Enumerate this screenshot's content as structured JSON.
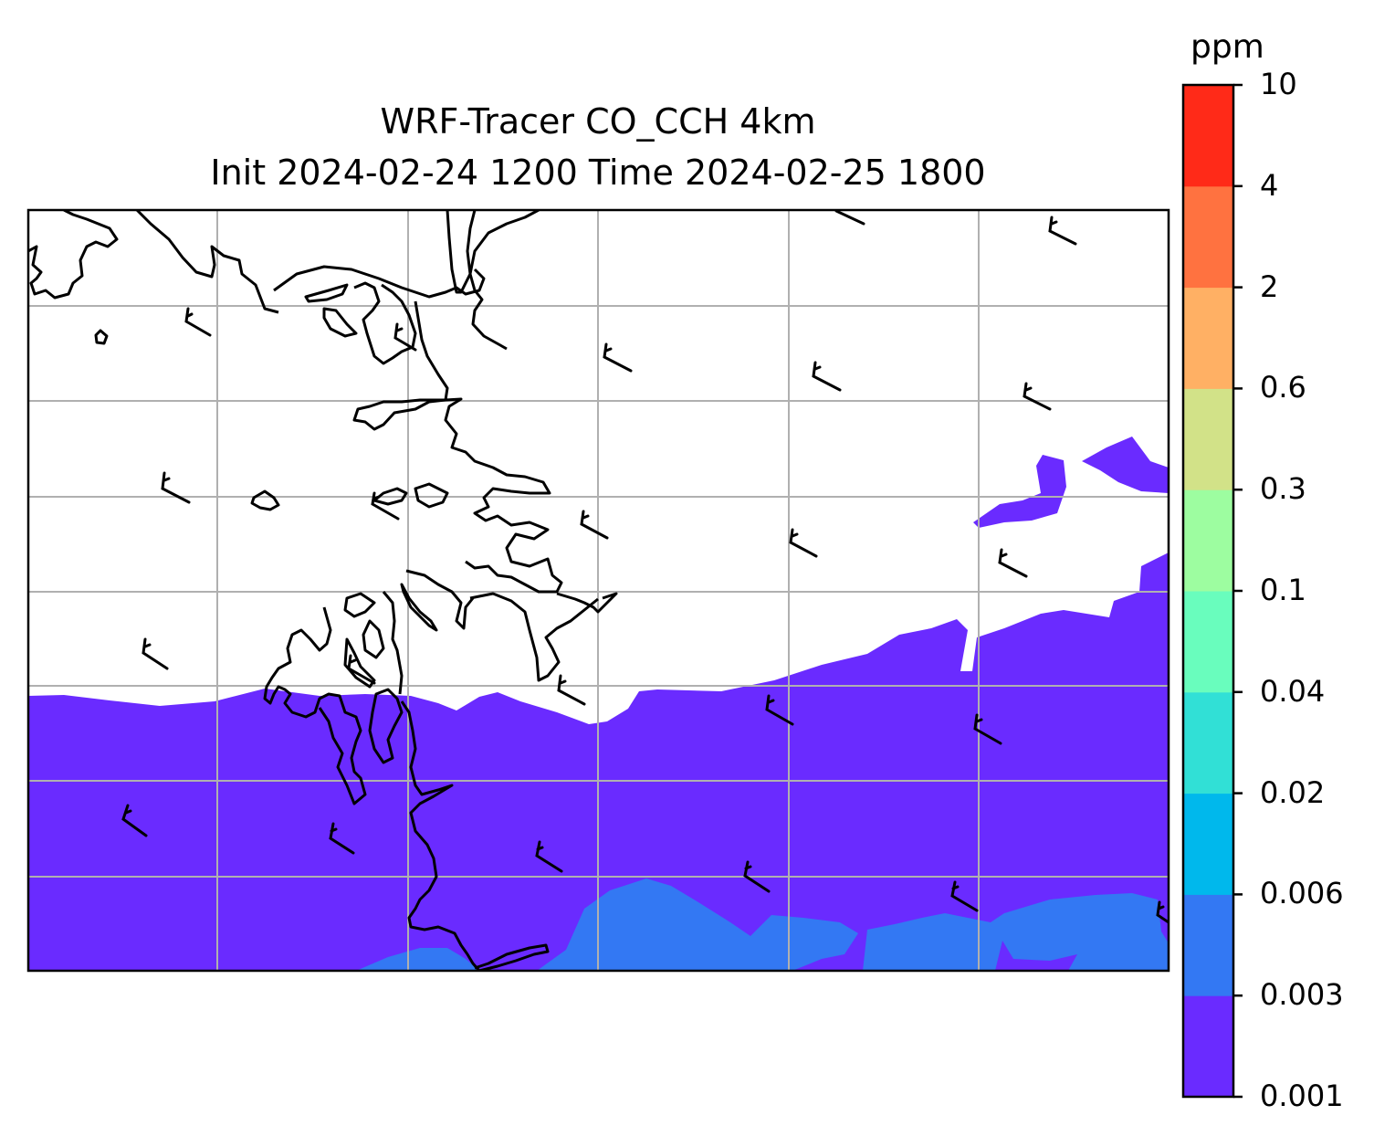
{
  "title": {
    "line1": "WRF-Tracer CO_CCH 4km",
    "line2": "Init 2024-02-24 1200 Time 2024-02-25 1800"
  },
  "colorbar": {
    "unit": "ppm",
    "levels": [
      "0.001",
      "0.003",
      "0.006",
      "0.02",
      "0.04",
      "0.1",
      "0.3",
      "0.6",
      "2",
      "4",
      "10"
    ],
    "colors": [
      "#6a2bff",
      "#3378f3",
      "#00b8ec",
      "#31e0d6",
      "#69fdbd",
      "#9dfda0",
      "#d2e288",
      "#ffb064",
      "#ff7240",
      "#ff2a18"
    ]
  },
  "map_layers": {
    "fill_lowest_color": "#6a2bff",
    "fill_second_color": "#3378f3",
    "gridline_color": "#b0b0b0",
    "coastline_color": "#000000",
    "wind_barbs": "black"
  }
}
